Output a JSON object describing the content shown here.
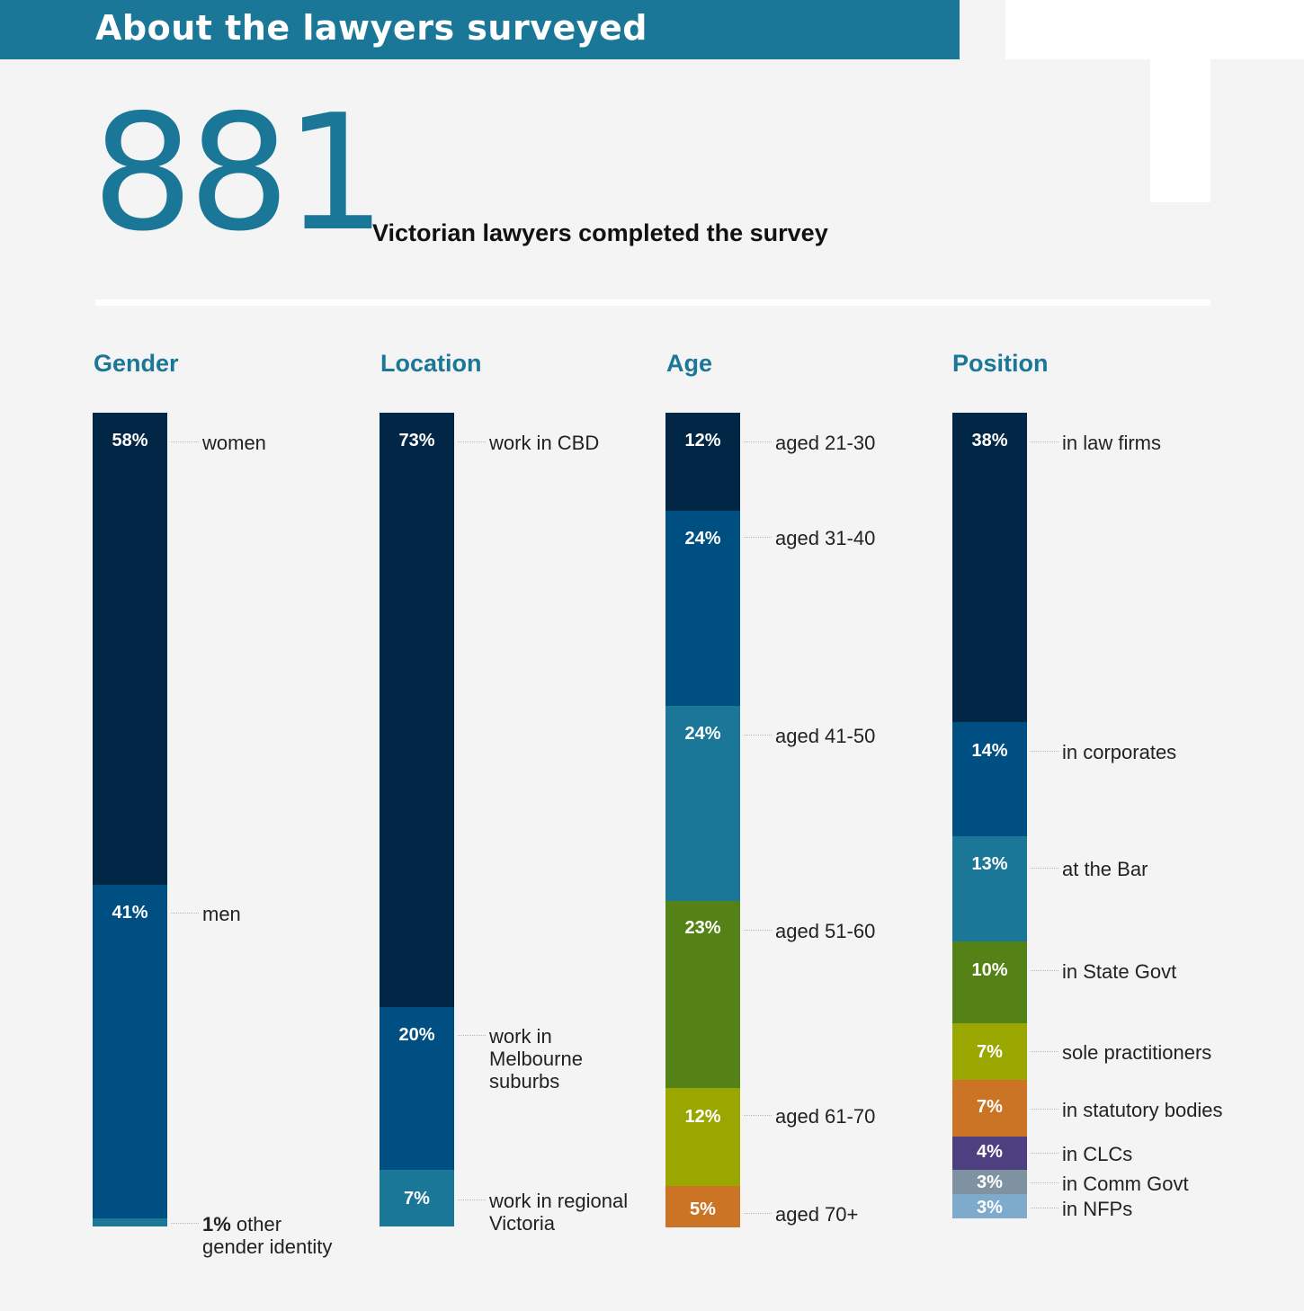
{
  "header": {
    "title": "About the lawyers surveyed"
  },
  "summary": {
    "number": "881",
    "caption": "Victorian lawyers completed the survey"
  },
  "colors": {
    "navy": "#022646",
    "blue": "#004f82",
    "teal": "#1b7797",
    "green": "#548216",
    "olive": "#9aa700",
    "orange": "#cc7425",
    "purple": "#4d3f80",
    "grey": "#7f92a1",
    "lightblue": "#7eaacb"
  },
  "chart_data": [
    {
      "type": "stacked_bar",
      "title": "Gender",
      "segments": [
        {
          "label": "58%",
          "value": 58,
          "desc": "women",
          "color": "#022646"
        },
        {
          "label": "41%",
          "value": 41,
          "desc": "men",
          "color": "#004f82"
        },
        {
          "label": "1%",
          "value": 1,
          "desc": "other gender identity",
          "desc_prefix": "1%",
          "desc_rest": " other gender identity",
          "color": "#1b7797"
        }
      ]
    },
    {
      "type": "stacked_bar",
      "title": "Location",
      "segments": [
        {
          "label": "73%",
          "value": 73,
          "desc": "work in CBD",
          "color": "#022646"
        },
        {
          "label": "20%",
          "value": 20,
          "desc": "work in Melbourne suburbs",
          "color": "#004f82"
        },
        {
          "label": "7%",
          "value": 7,
          "desc": "work in regional Victoria",
          "color": "#1b7797"
        }
      ]
    },
    {
      "type": "stacked_bar",
      "title": "Age",
      "segments": [
        {
          "label": "12%",
          "value": 12,
          "desc": "aged 21-30",
          "color": "#022646"
        },
        {
          "label": "24%",
          "value": 24,
          "desc": "aged 31-40",
          "color": "#004f82"
        },
        {
          "label": "24%",
          "value": 24,
          "desc": "aged 41-50",
          "color": "#1b7797"
        },
        {
          "label": "23%",
          "value": 23,
          "desc": "aged 51-60",
          "color": "#548216"
        },
        {
          "label": "12%",
          "value": 12,
          "desc": "aged 61-70",
          "color": "#9aa700"
        },
        {
          "label": "5%",
          "value": 5,
          "desc": "aged 70+",
          "color": "#cc7425"
        }
      ]
    },
    {
      "type": "stacked_bar",
      "title": "Position",
      "segments": [
        {
          "label": "38%",
          "value": 38,
          "desc": "in law firms",
          "color": "#022646"
        },
        {
          "label": "14%",
          "value": 14,
          "desc": "in corporates",
          "color": "#004f82"
        },
        {
          "label": "13%",
          "value": 13,
          "desc": "at the Bar",
          "color": "#1b7797"
        },
        {
          "label": "10%",
          "value": 10,
          "desc": "in State Govt",
          "color": "#548216"
        },
        {
          "label": "7%",
          "value": 7,
          "desc": "sole practitioners",
          "color": "#9aa700"
        },
        {
          "label": "7%",
          "value": 7,
          "desc": "in statutory bodies",
          "color": "#cc7425"
        },
        {
          "label": "4%",
          "value": 4,
          "desc": "in CLCs",
          "color": "#4d3f80"
        },
        {
          "label": "3%",
          "value": 3,
          "desc": "in Comm Govt",
          "color": "#7f92a1"
        },
        {
          "label": "3%",
          "value": 3,
          "desc": "in NFPs",
          "color": "#7eaacb"
        }
      ]
    }
  ]
}
